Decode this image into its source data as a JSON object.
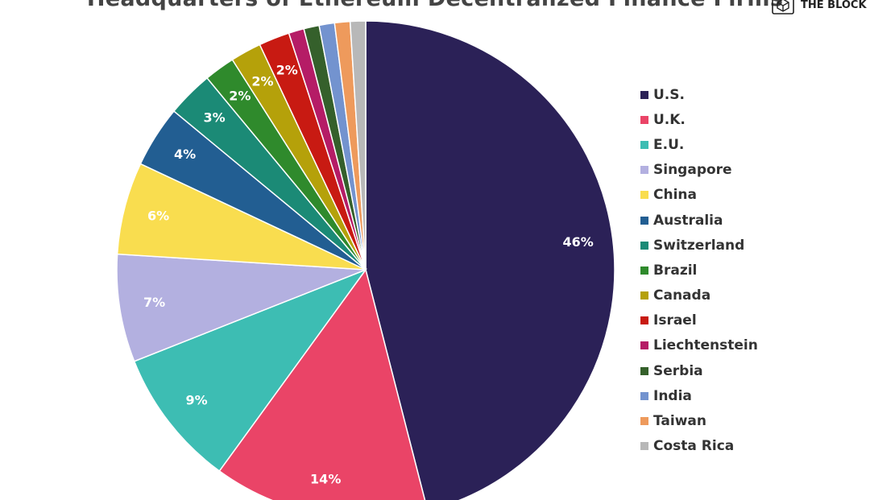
{
  "brand": {
    "name": "THE BLOCK",
    "icon": "the-block-cube-logo"
  },
  "chart_data": {
    "type": "pie",
    "title": "Headquarters of Ethereum Decentralized Finance Firms",
    "legend_position": "right",
    "categories": [
      "U.S.",
      "U.K.",
      "E.U.",
      "Singapore",
      "China",
      "Australia",
      "Switzerland",
      "Brazil",
      "Canada",
      "Israel",
      "Liechtenstein",
      "Serbia",
      "India",
      "Taiwan",
      "Costa Rica"
    ],
    "values": [
      46,
      14,
      9,
      7,
      6,
      4,
      3,
      2,
      2,
      2,
      1,
      1,
      1,
      1,
      1
    ],
    "data_labels": [
      "46%",
      "14%",
      "9%",
      "7%",
      "6%",
      "4%",
      "3%",
      "2%",
      "2%",
      "2%",
      "",
      "",
      "",
      "",
      ""
    ],
    "colors": [
      "#2b2157",
      "#ea4467",
      "#3dbdb3",
      "#b3b0e0",
      "#f9dd4f",
      "#225e92",
      "#1b8a76",
      "#2f8a2c",
      "#b5a10a",
      "#c81a12",
      "#b51c66",
      "#35602b",
      "#7393cf",
      "#ee9a5c",
      "#b8b8b8"
    ]
  }
}
